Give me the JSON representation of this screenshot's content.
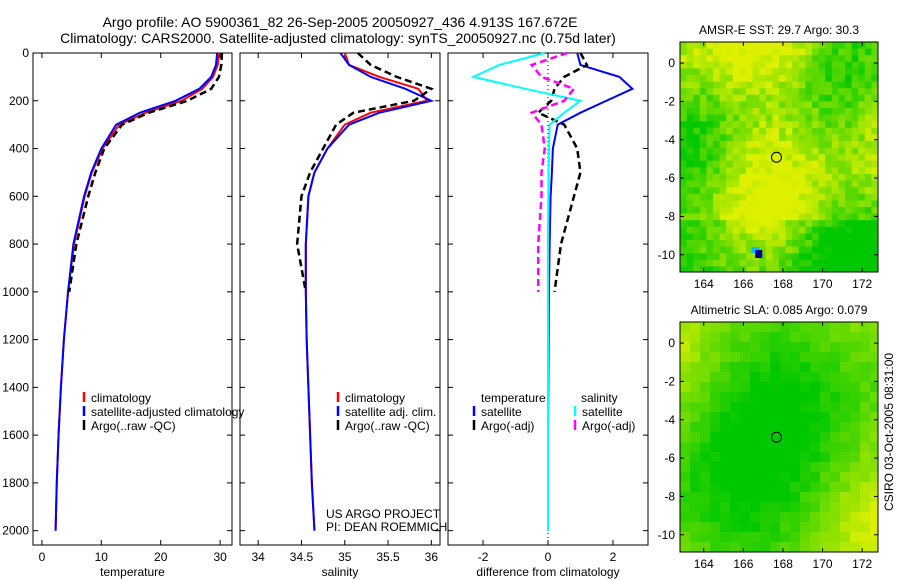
{
  "title_line1": "Argo profile: AO 5900361_82 26-Sep-2005 20050927_436 4.913S 167.672E",
  "title_line2": "Climatology: CARS2000. Satellite-adjusted climatology: synTS_20050927.nc (0.75d later)",
  "side_label": "CSIRO 03-Oct-2005 08:31:00",
  "colors": {
    "red": "#ff0000",
    "blue": "#0000ff",
    "black": "#000000",
    "cyan": "#00ffff",
    "magenta": "#ff00ff"
  },
  "chart_data": [
    {
      "type": "line",
      "id": "temperature",
      "xlabel": "temperature",
      "xlim": [
        -1.5,
        32
      ],
      "ylim": [
        0,
        2060
      ],
      "y_reversed": true,
      "xticks": [
        0,
        10,
        20,
        30
      ],
      "yticks": [
        0,
        200,
        400,
        600,
        800,
        1000,
        1200,
        1400,
        1600,
        1800,
        2000
      ],
      "depth": [
        0,
        50,
        100,
        150,
        200,
        250,
        300,
        400,
        500,
        600,
        800,
        1000,
        1200,
        1400,
        1600,
        1800,
        2000
      ],
      "series": [
        {
          "name": "climatology",
          "color": "red",
          "dash": false,
          "values": [
            29.8,
            29.6,
            28.8,
            27.0,
            23.5,
            17.5,
            13.0,
            10.2,
            8.4,
            7.2,
            5.4,
            4.4,
            3.7,
            3.2,
            2.8,
            2.5,
            2.3
          ]
        },
        {
          "name": "satellite-adjusted climatology",
          "color": "blue",
          "dash": false,
          "values": [
            29.5,
            29.3,
            28.5,
            26.5,
            22.5,
            16.5,
            12.5,
            10.0,
            8.3,
            7.1,
            5.3,
            4.4,
            3.7,
            3.2,
            2.8,
            2.5,
            2.3
          ]
        },
        {
          "name": "Argo(..raw -QC)",
          "color": "black",
          "dash": true,
          "values": [
            30.3,
            30.2,
            29.8,
            28.5,
            24.5,
            18.0,
            13.5,
            10.5,
            9.0,
            7.8,
            5.8,
            4.6
          ]
        }
      ],
      "legend": [
        "climatology",
        "satellite-adjusted climatology",
        "Argo(..raw -QC)"
      ]
    },
    {
      "type": "line",
      "id": "salinity",
      "xlabel": "salinity",
      "xlim": [
        33.79,
        36.1
      ],
      "ylim": [
        0,
        2060
      ],
      "y_reversed": true,
      "xticks": [
        34,
        34.5,
        35,
        35.5,
        36
      ],
      "depth": [
        0,
        50,
        100,
        150,
        200,
        250,
        300,
        400,
        500,
        600,
        800,
        1000,
        1200,
        1400,
        1600,
        1800,
        2000
      ],
      "series": [
        {
          "name": "climatology",
          "color": "red",
          "dash": false,
          "values": [
            35.0,
            35.05,
            35.4,
            35.85,
            35.95,
            35.3,
            35.0,
            34.8,
            34.65,
            34.58,
            34.55,
            34.55,
            34.56,
            34.58,
            34.6,
            34.62,
            34.65
          ]
        },
        {
          "name": "satellite adj. clim.",
          "color": "blue",
          "dash": false,
          "values": [
            34.95,
            35.05,
            35.3,
            35.7,
            36.0,
            35.4,
            35.05,
            34.8,
            34.65,
            34.58,
            34.55,
            34.55,
            34.56,
            34.58,
            34.6,
            34.62,
            34.65
          ]
        },
        {
          "name": "Argo(..raw -QC)",
          "color": "black",
          "dash": true,
          "values": [
            35.15,
            35.3,
            35.6,
            36.0,
            35.8,
            35.1,
            34.9,
            34.75,
            34.6,
            34.5,
            34.45,
            34.55
          ]
        }
      ],
      "legend": [
        "climatology",
        "satellite adj. clim.",
        "Argo(..raw -QC)"
      ],
      "annotation": [
        "US ARGO PROJECT",
        "PI: DEAN ROEMMICH"
      ]
    },
    {
      "type": "line",
      "id": "difference",
      "xlabel": "difference from climatology",
      "xlim": [
        -3.08,
        3.08
      ],
      "ylim": [
        0,
        2060
      ],
      "y_reversed": true,
      "xticks": [
        -2,
        0,
        2
      ],
      "depth": [
        0,
        50,
        100,
        150,
        200,
        250,
        300,
        400,
        500,
        600,
        800,
        1000,
        1200,
        1400,
        1600,
        1800,
        2000
      ],
      "series": [
        {
          "name": "temperature satellite",
          "color": "blue",
          "dash": false,
          "values": [
            0.9,
            1.0,
            2.2,
            2.6,
            1.8,
            1.0,
            0.3,
            0.15,
            0.12,
            0.08,
            0.05,
            0.03,
            0.02,
            0.01,
            0.0,
            0.0,
            0.0
          ]
        },
        {
          "name": "temperature Argo(-adj)",
          "color": "black",
          "dash": true,
          "values": [
            1.0,
            1.2,
            0.5,
            0.2,
            0.1,
            -0.3,
            0.5,
            0.9,
            1.0,
            0.8,
            0.4,
            0.2
          ]
        },
        {
          "name": "salinity satellite",
          "color": "cyan",
          "dash": false,
          "values": [
            -0.1,
            -1.5,
            -2.3,
            -0.7,
            1.0,
            0.5,
            0.05,
            0.03,
            0.02,
            0.01,
            0.0,
            0.0,
            0.0,
            0.0,
            0.0,
            0.0,
            0.0
          ]
        },
        {
          "name": "salinity Argo(-adj)",
          "color": "magenta",
          "dash": true,
          "values": [
            0.6,
            -0.5,
            -0.2,
            0.8,
            0.5,
            -0.5,
            -0.2,
            -0.1,
            -0.2,
            -0.2,
            -0.3,
            -0.3
          ]
        }
      ],
      "legend_headers": [
        "temperature",
        "salinity"
      ],
      "legend": [
        "satellite",
        "Argo(-adj)",
        "satellite",
        "Argo(-adj)"
      ]
    },
    {
      "type": "heatmap",
      "id": "sst_map",
      "title": "AMSR-E SST: 29.7 Argo: 30.3",
      "xlim": [
        162.8,
        172.8
      ],
      "ylim": [
        -10.9,
        1.1
      ],
      "xticks": [
        164,
        166,
        168,
        170,
        172
      ],
      "yticks": [
        0,
        -2,
        -4,
        -6,
        -8,
        -10
      ],
      "marker": {
        "lon": 167.672,
        "lat": -4.913
      }
    },
    {
      "type": "heatmap",
      "id": "sla_map",
      "title": "Altimetric SLA: 0.085 Argo: 0.079",
      "xlim": [
        162.8,
        172.8
      ],
      "ylim": [
        -10.9,
        1.1
      ],
      "xticks": [
        164,
        166,
        168,
        170,
        172
      ],
      "yticks": [
        0,
        -2,
        -4,
        -6,
        -8,
        -10
      ],
      "marker": {
        "lon": 167.672,
        "lat": -4.913
      }
    }
  ]
}
